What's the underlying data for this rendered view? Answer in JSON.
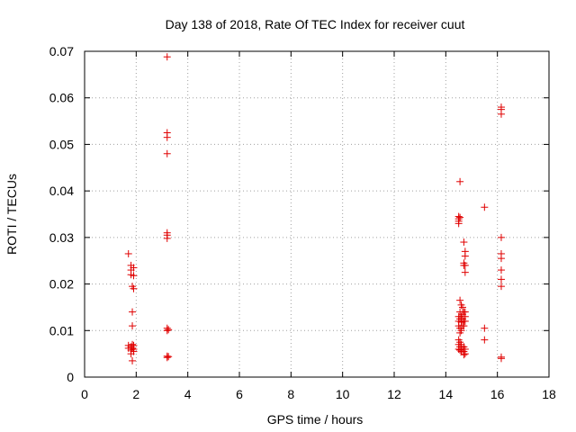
{
  "chart_data": {
    "type": "scatter",
    "title": "Day 138 of 2018, Rate Of TEC Index for receiver cuut",
    "xlabel": "GPS time / hours",
    "ylabel": "ROTI / TECUs",
    "xlim": [
      0,
      18
    ],
    "ylim": [
      0,
      0.07
    ],
    "xticks": [
      0,
      2,
      4,
      6,
      8,
      10,
      12,
      14,
      16,
      18
    ],
    "yticks": [
      0,
      0.01,
      0.02,
      0.03,
      0.04,
      0.05,
      0.06,
      0.07
    ],
    "ytick_labels": [
      "0",
      "0.01",
      "0.02",
      "0.03",
      "0.04",
      "0.05",
      "0.06",
      "0.07"
    ],
    "grid": true,
    "marker": "+",
    "marker_color": "#e00000",
    "series": [
      {
        "name": "ROTI",
        "points": [
          [
            1.7,
            0.0265
          ],
          [
            1.7,
            0.0068
          ],
          [
            1.7,
            0.0062
          ],
          [
            1.8,
            0.024
          ],
          [
            1.8,
            0.023
          ],
          [
            1.8,
            0.022
          ],
          [
            1.8,
            0.0065
          ],
          [
            1.8,
            0.0058
          ],
          [
            1.8,
            0.005
          ],
          [
            1.85,
            0.0195
          ],
          [
            1.85,
            0.014
          ],
          [
            1.85,
            0.011
          ],
          [
            1.85,
            0.007
          ],
          [
            1.85,
            0.0062
          ],
          [
            1.9,
            0.0235
          ],
          [
            1.9,
            0.0218
          ],
          [
            1.9,
            0.019
          ],
          [
            1.9,
            0.0068
          ],
          [
            1.9,
            0.006
          ],
          [
            1.9,
            0.0055
          ],
          [
            1.85,
            0.0035
          ],
          [
            3.2,
            0.0688
          ],
          [
            3.2,
            0.0525
          ],
          [
            3.2,
            0.0515
          ],
          [
            3.2,
            0.048
          ],
          [
            3.2,
            0.031
          ],
          [
            3.2,
            0.0305
          ],
          [
            3.2,
            0.0298
          ],
          [
            3.2,
            0.0105
          ],
          [
            3.2,
            0.01
          ],
          [
            3.2,
            0.0045
          ],
          [
            3.2,
            0.0042
          ],
          [
            3.25,
            0.0102
          ],
          [
            3.25,
            0.0044
          ],
          [
            14.5,
            0.0345
          ],
          [
            14.5,
            0.034
          ],
          [
            14.5,
            0.0335
          ],
          [
            14.5,
            0.033
          ],
          [
            14.5,
            0.013
          ],
          [
            14.5,
            0.012
          ],
          [
            14.5,
            0.011
          ],
          [
            14.5,
            0.008
          ],
          [
            14.5,
            0.007
          ],
          [
            14.5,
            0.006
          ],
          [
            14.55,
            0.042
          ],
          [
            14.55,
            0.0343
          ],
          [
            14.55,
            0.0165
          ],
          [
            14.55,
            0.014
          ],
          [
            14.55,
            0.0125
          ],
          [
            14.55,
            0.0105
          ],
          [
            14.55,
            0.0095
          ],
          [
            14.55,
            0.0075
          ],
          [
            14.55,
            0.0065
          ],
          [
            14.55,
            0.0058
          ],
          [
            14.6,
            0.0155
          ],
          [
            14.6,
            0.013
          ],
          [
            14.6,
            0.0118
          ],
          [
            14.6,
            0.01
          ],
          [
            14.6,
            0.007
          ],
          [
            14.6,
            0.0055
          ],
          [
            14.65,
            0.015
          ],
          [
            14.65,
            0.0135
          ],
          [
            14.65,
            0.0125
          ],
          [
            14.65,
            0.011
          ],
          [
            14.65,
            0.006
          ],
          [
            14.7,
            0.029
          ],
          [
            14.7,
            0.0245
          ],
          [
            14.7,
            0.024
          ],
          [
            14.7,
            0.014
          ],
          [
            14.7,
            0.012
          ],
          [
            14.7,
            0.011
          ],
          [
            14.7,
            0.0065
          ],
          [
            14.7,
            0.0055
          ],
          [
            14.7,
            0.0048
          ],
          [
            14.75,
            0.027
          ],
          [
            14.75,
            0.026
          ],
          [
            14.75,
            0.024
          ],
          [
            14.75,
            0.0225
          ],
          [
            14.75,
            0.014
          ],
          [
            14.75,
            0.013
          ],
          [
            14.75,
            0.012
          ],
          [
            14.75,
            0.006
          ],
          [
            14.75,
            0.005
          ],
          [
            15.5,
            0.0365
          ],
          [
            15.5,
            0.0105
          ],
          [
            15.5,
            0.008
          ],
          [
            16.15,
            0.058
          ],
          [
            16.15,
            0.0575
          ],
          [
            16.15,
            0.0565
          ],
          [
            16.15,
            0.03
          ],
          [
            16.15,
            0.0265
          ],
          [
            16.15,
            0.0255
          ],
          [
            16.15,
            0.023
          ],
          [
            16.15,
            0.021
          ],
          [
            16.15,
            0.0195
          ],
          [
            16.15,
            0.0043
          ],
          [
            16.15,
            0.004
          ]
        ]
      }
    ]
  }
}
